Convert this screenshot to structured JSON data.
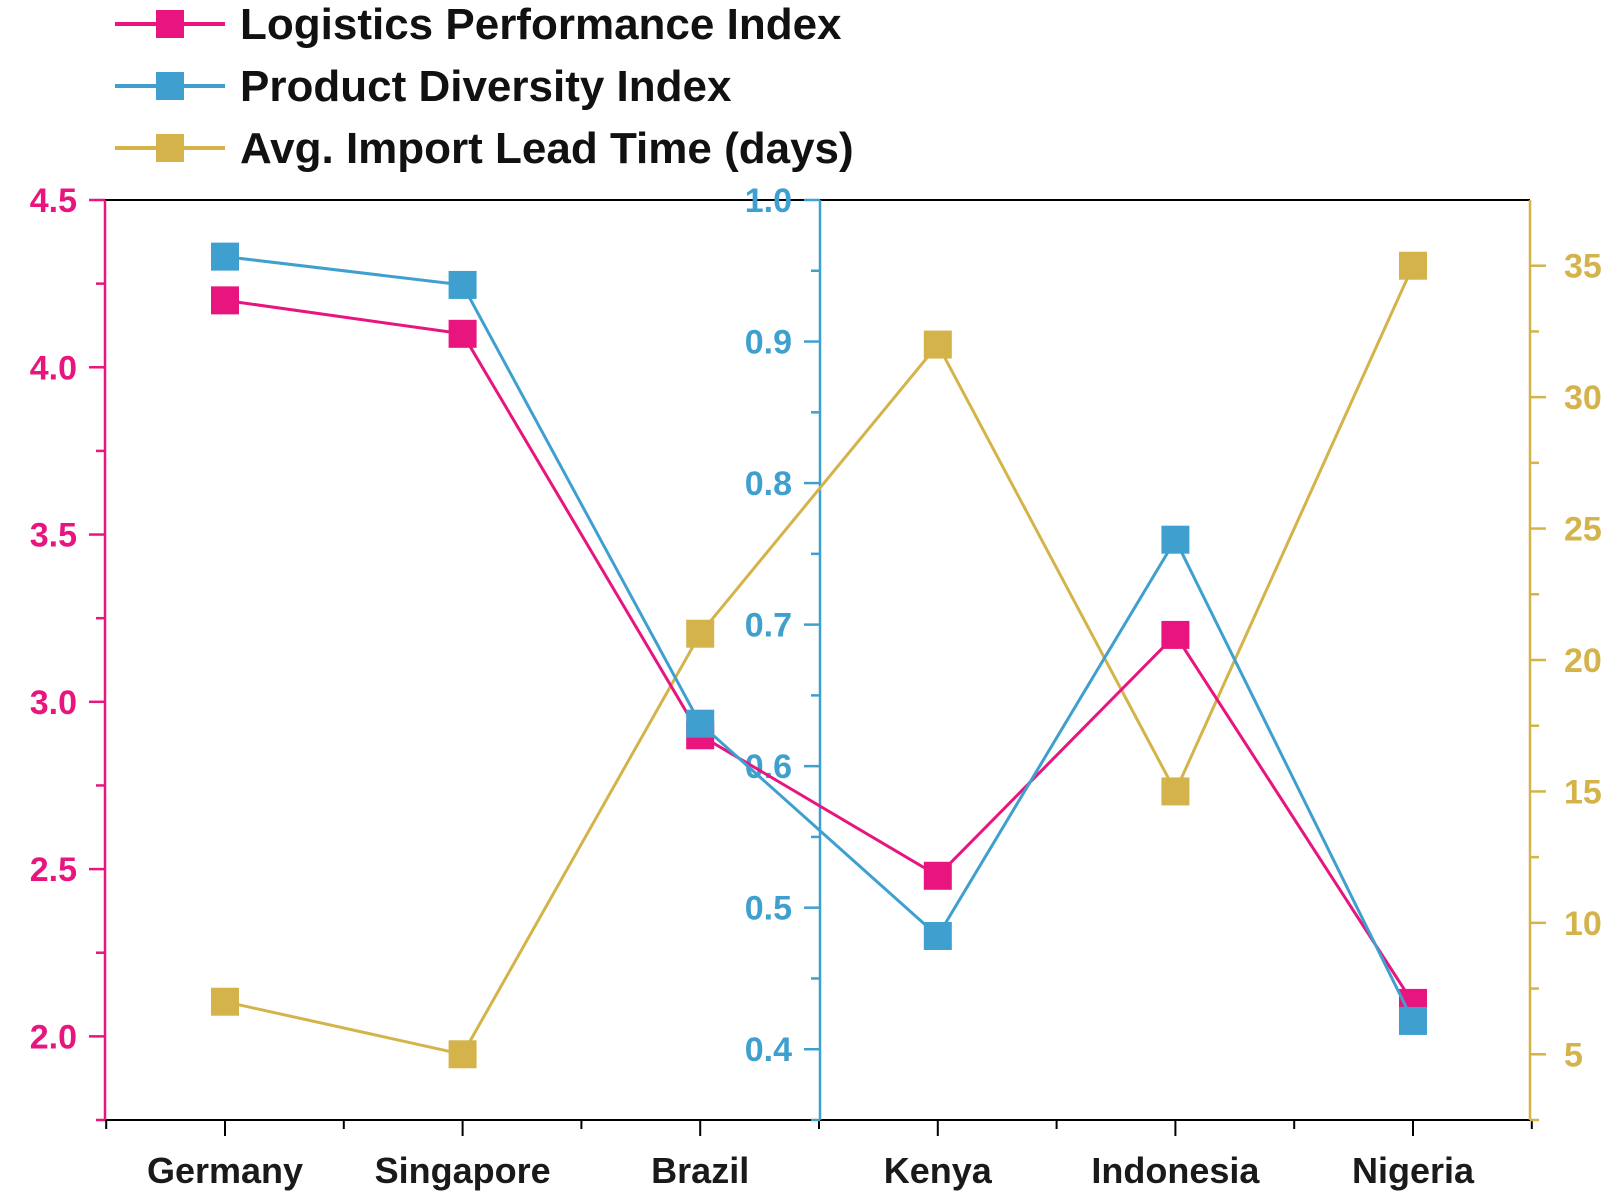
{
  "chart_data": {
    "type": "line",
    "categories": [
      "Germany",
      "Singapore",
      "Brazil",
      "Kenya",
      "Indonesia",
      "Nigeria"
    ],
    "series": [
      {
        "name": "Logistics Performance Index",
        "axis": "left",
        "color": "#e8157f",
        "values": [
          4.2,
          4.1,
          2.9,
          2.48,
          3.2,
          2.1
        ]
      },
      {
        "name": "Product Diversity Index",
        "axis": "middle",
        "color": "#3fa0d0",
        "values": [
          0.96,
          0.94,
          0.63,
          0.48,
          0.76,
          0.42
        ]
      },
      {
        "name": "Avg. Import Lead Time (days)",
        "axis": "right",
        "color": "#d4b44a",
        "values": [
          7,
          5,
          21,
          32,
          15,
          35
        ]
      }
    ],
    "axes": {
      "left": {
        "ylim": [
          1.75,
          4.5
        ],
        "ticks": [
          "2.0",
          "2.5",
          "3.0",
          "3.5",
          "4.0",
          "4.5"
        ],
        "color": "#e8157f"
      },
      "middle": {
        "ylim": [
          0.35,
          1.0
        ],
        "ticks": [
          "0.4",
          "0.5",
          "0.6",
          "0.7",
          "0.8",
          "0.9",
          "1.0"
        ],
        "color": "#3fa0d0"
      },
      "right": {
        "ylim": [
          2.5,
          37.5
        ],
        "ticks": [
          "5",
          "10",
          "15",
          "20",
          "25",
          "30",
          "35"
        ],
        "color": "#d4b44a"
      }
    },
    "legend": "top-left",
    "grid": false
  }
}
